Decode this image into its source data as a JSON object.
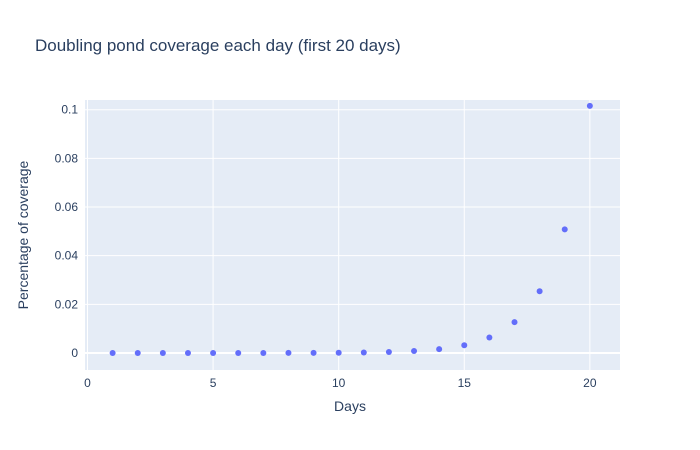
{
  "chart_data": {
    "type": "scatter",
    "title": "Doubling pond coverage each day (first 20 days)",
    "xlabel": "Days",
    "ylabel": "Percentage of coverage",
    "x": [
      1,
      2,
      3,
      4,
      5,
      6,
      7,
      8,
      9,
      10,
      11,
      12,
      13,
      14,
      15,
      16,
      17,
      18,
      19,
      20
    ],
    "y": [
      2e-07,
      4e-07,
      8e-07,
      1.6e-06,
      3.1e-06,
      6.2e-06,
      1.24e-05,
      2.48e-05,
      4.96e-05,
      9.92e-05,
      0.0001984,
      0.0003968,
      0.0007936,
      0.0015872,
      0.0031744,
      0.0063488,
      0.0126976,
      0.0253952,
      0.0507904,
      0.1015808
    ],
    "xlim": [
      -0.1,
      21.2
    ],
    "ylim": [
      -0.007,
      0.104
    ],
    "xticks": [
      0,
      5,
      10,
      15,
      20
    ],
    "xtick_labels": [
      "0",
      "5",
      "10",
      "15",
      "20"
    ],
    "yticks": [
      0,
      0.02,
      0.04,
      0.06,
      0.08,
      0.1
    ],
    "ytick_labels": [
      "0",
      "0.02",
      "0.04",
      "0.06",
      "0.08",
      "0.1"
    ],
    "grid": true,
    "colors": {
      "plot_bg": "#e5ecf6",
      "grid": "#ffffff",
      "marker": "#636efa",
      "text": "#2a3f5f"
    }
  }
}
